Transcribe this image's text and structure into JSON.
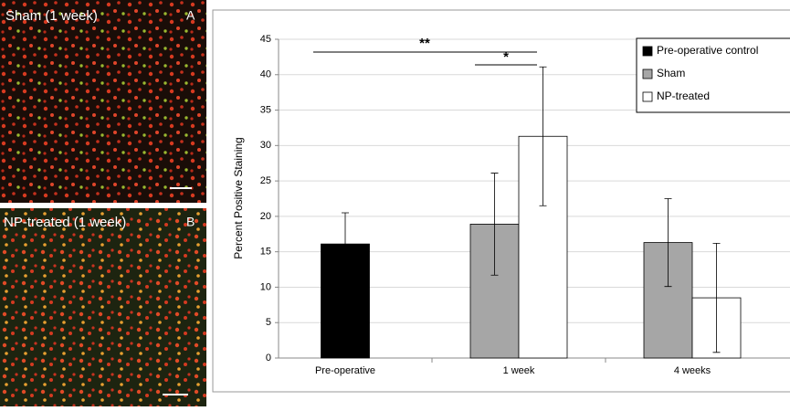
{
  "panels": [
    {
      "title": "Sham (1 week)",
      "letter": "A"
    },
    {
      "title": "NP-treated (1 week)",
      "letter": "B"
    }
  ],
  "chart_data": {
    "type": "bar",
    "y_label": "Percent Positive Staining",
    "categories": [
      "Pre-operative",
      "1 week",
      "4 weeks"
    ],
    "series": [
      {
        "name": "Pre-operative control",
        "color": "#000000",
        "values": [
          16.1,
          null,
          null
        ],
        "errors": [
          4.4,
          null,
          null
        ]
      },
      {
        "name": "Sham",
        "color": "#a6a6a6",
        "values": [
          null,
          18.9,
          16.3
        ],
        "errors": [
          null,
          7.2,
          6.2
        ]
      },
      {
        "name": "NP-treated",
        "color": "#ffffff",
        "values": [
          null,
          31.3,
          8.5
        ],
        "errors": [
          null,
          9.8,
          7.7
        ]
      }
    ],
    "ylim": [
      0,
      45
    ],
    "yticks": [
      0,
      5,
      10,
      15,
      20,
      25,
      30,
      35,
      40,
      45
    ],
    "grid": true,
    "legend": "top-right",
    "annotations": [
      "**",
      "*"
    ]
  }
}
